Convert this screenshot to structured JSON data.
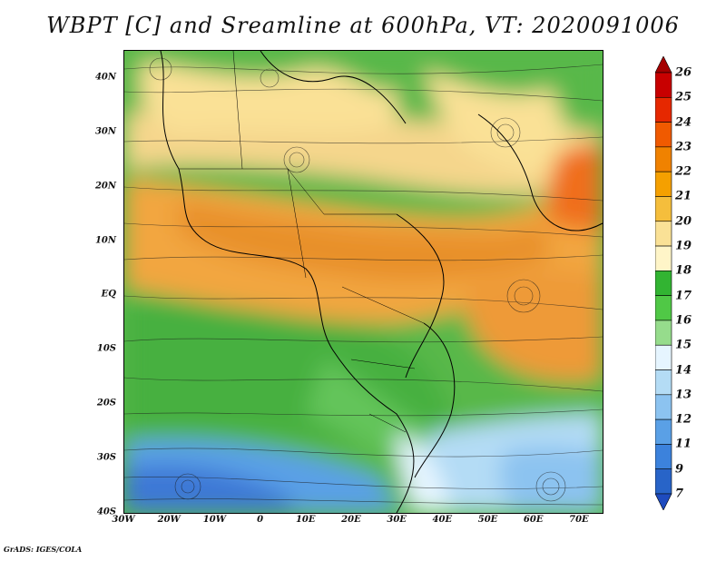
{
  "title": "WBPT [C] and Sreamline at 600hPa, VT: 2020091006",
  "y_axis": {
    "ticks": [
      {
        "label": "40N",
        "lat": 40
      },
      {
        "label": "30N",
        "lat": 30
      },
      {
        "label": "20N",
        "lat": 20
      },
      {
        "label": "10N",
        "lat": 10
      },
      {
        "label": "EQ",
        "lat": 0
      },
      {
        "label": "10S",
        "lat": -10
      },
      {
        "label": "20S",
        "lat": -20
      },
      {
        "label": "30S",
        "lat": -30
      },
      {
        "label": "40S",
        "lat": -40
      }
    ],
    "range": [
      -40,
      45
    ]
  },
  "x_axis": {
    "ticks": [
      {
        "label": "30W",
        "lon": -30
      },
      {
        "label": "20W",
        "lon": -20
      },
      {
        "label": "10W",
        "lon": -10
      },
      {
        "label": "0",
        "lon": 0
      },
      {
        "label": "10E",
        "lon": 10
      },
      {
        "label": "20E",
        "lon": 20
      },
      {
        "label": "30E",
        "lon": 30
      },
      {
        "label": "40E",
        "lon": 40
      },
      {
        "label": "50E",
        "lon": 50
      },
      {
        "label": "60E",
        "lon": 60
      },
      {
        "label": "70E",
        "lon": 70
      }
    ],
    "range": [
      -30,
      75
    ]
  },
  "colorbar": {
    "levels": [
      "26",
      "25",
      "24",
      "23",
      "22",
      "21",
      "20",
      "19",
      "18",
      "17",
      "16",
      "15",
      "14",
      "13",
      "12",
      "11",
      "9",
      "7"
    ],
    "colors": [
      "#a50000",
      "#c80000",
      "#e62800",
      "#f05a00",
      "#f08200",
      "#f5a000",
      "#f5be3c",
      "#fae196",
      "#fff5c8",
      "#32b432",
      "#50c846",
      "#96dc8c",
      "#e6f5ff",
      "#b4dcf5",
      "#8cc3f0",
      "#5aa0e6",
      "#3c82dc",
      "#2864c8",
      "#1e4bbe"
    ]
  },
  "credit": "GrADS: IGES/COLA"
}
